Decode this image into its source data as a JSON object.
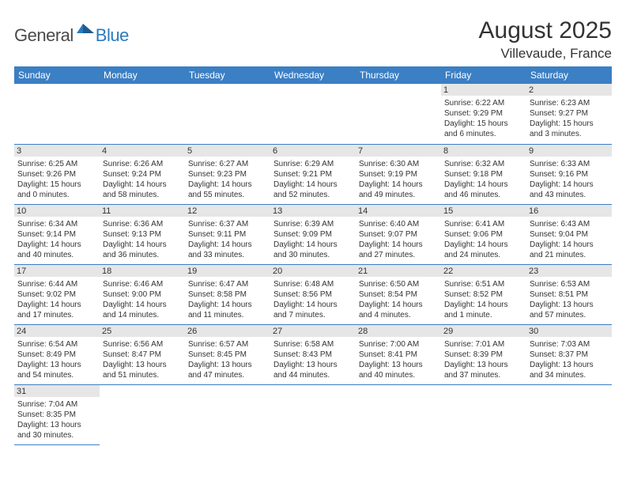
{
  "logo": {
    "part1": "General",
    "part2": "Blue"
  },
  "title": "August 2025",
  "location": "Villevaude, France",
  "colors": {
    "header_bg": "#3b7fc4",
    "header_fg": "#ffffff",
    "daynum_bg": "#e6e6e6",
    "rule": "#3b7fc4",
    "text": "#333333",
    "logo_gray": "#4a4a4a",
    "logo_blue": "#2a7abf"
  },
  "weekdays": [
    "Sunday",
    "Monday",
    "Tuesday",
    "Wednesday",
    "Thursday",
    "Friday",
    "Saturday"
  ],
  "startOffset": 5,
  "days": [
    {
      "n": 1,
      "sunrise": "6:22 AM",
      "sunset": "9:29 PM",
      "dlh": 15,
      "dlm": 6
    },
    {
      "n": 2,
      "sunrise": "6:23 AM",
      "sunset": "9:27 PM",
      "dlh": 15,
      "dlm": 3
    },
    {
      "n": 3,
      "sunrise": "6:25 AM",
      "sunset": "9:26 PM",
      "dlh": 15,
      "dlm": 0
    },
    {
      "n": 4,
      "sunrise": "6:26 AM",
      "sunset": "9:24 PM",
      "dlh": 14,
      "dlm": 58
    },
    {
      "n": 5,
      "sunrise": "6:27 AM",
      "sunset": "9:23 PM",
      "dlh": 14,
      "dlm": 55
    },
    {
      "n": 6,
      "sunrise": "6:29 AM",
      "sunset": "9:21 PM",
      "dlh": 14,
      "dlm": 52
    },
    {
      "n": 7,
      "sunrise": "6:30 AM",
      "sunset": "9:19 PM",
      "dlh": 14,
      "dlm": 49
    },
    {
      "n": 8,
      "sunrise": "6:32 AM",
      "sunset": "9:18 PM",
      "dlh": 14,
      "dlm": 46
    },
    {
      "n": 9,
      "sunrise": "6:33 AM",
      "sunset": "9:16 PM",
      "dlh": 14,
      "dlm": 43
    },
    {
      "n": 10,
      "sunrise": "6:34 AM",
      "sunset": "9:14 PM",
      "dlh": 14,
      "dlm": 40
    },
    {
      "n": 11,
      "sunrise": "6:36 AM",
      "sunset": "9:13 PM",
      "dlh": 14,
      "dlm": 36
    },
    {
      "n": 12,
      "sunrise": "6:37 AM",
      "sunset": "9:11 PM",
      "dlh": 14,
      "dlm": 33
    },
    {
      "n": 13,
      "sunrise": "6:39 AM",
      "sunset": "9:09 PM",
      "dlh": 14,
      "dlm": 30
    },
    {
      "n": 14,
      "sunrise": "6:40 AM",
      "sunset": "9:07 PM",
      "dlh": 14,
      "dlm": 27
    },
    {
      "n": 15,
      "sunrise": "6:41 AM",
      "sunset": "9:06 PM",
      "dlh": 14,
      "dlm": 24
    },
    {
      "n": 16,
      "sunrise": "6:43 AM",
      "sunset": "9:04 PM",
      "dlh": 14,
      "dlm": 21
    },
    {
      "n": 17,
      "sunrise": "6:44 AM",
      "sunset": "9:02 PM",
      "dlh": 14,
      "dlm": 17
    },
    {
      "n": 18,
      "sunrise": "6:46 AM",
      "sunset": "9:00 PM",
      "dlh": 14,
      "dlm": 14
    },
    {
      "n": 19,
      "sunrise": "6:47 AM",
      "sunset": "8:58 PM",
      "dlh": 14,
      "dlm": 11
    },
    {
      "n": 20,
      "sunrise": "6:48 AM",
      "sunset": "8:56 PM",
      "dlh": 14,
      "dlm": 7
    },
    {
      "n": 21,
      "sunrise": "6:50 AM",
      "sunset": "8:54 PM",
      "dlh": 14,
      "dlm": 4
    },
    {
      "n": 22,
      "sunrise": "6:51 AM",
      "sunset": "8:52 PM",
      "dlh": 14,
      "dlm": 1
    },
    {
      "n": 23,
      "sunrise": "6:53 AM",
      "sunset": "8:51 PM",
      "dlh": 13,
      "dlm": 57
    },
    {
      "n": 24,
      "sunrise": "6:54 AM",
      "sunset": "8:49 PM",
      "dlh": 13,
      "dlm": 54
    },
    {
      "n": 25,
      "sunrise": "6:56 AM",
      "sunset": "8:47 PM",
      "dlh": 13,
      "dlm": 51
    },
    {
      "n": 26,
      "sunrise": "6:57 AM",
      "sunset": "8:45 PM",
      "dlh": 13,
      "dlm": 47
    },
    {
      "n": 27,
      "sunrise": "6:58 AM",
      "sunset": "8:43 PM",
      "dlh": 13,
      "dlm": 44
    },
    {
      "n": 28,
      "sunrise": "7:00 AM",
      "sunset": "8:41 PM",
      "dlh": 13,
      "dlm": 40
    },
    {
      "n": 29,
      "sunrise": "7:01 AM",
      "sunset": "8:39 PM",
      "dlh": 13,
      "dlm": 37
    },
    {
      "n": 30,
      "sunrise": "7:03 AM",
      "sunset": "8:37 PM",
      "dlh": 13,
      "dlm": 34
    },
    {
      "n": 31,
      "sunrise": "7:04 AM",
      "sunset": "8:35 PM",
      "dlh": 13,
      "dlm": 30
    }
  ],
  "labels": {
    "sunrise": "Sunrise:",
    "sunset": "Sunset:",
    "daylight": "Daylight:",
    "hours": "hours",
    "and": "and",
    "minute": "minute",
    "minutes": "minutes"
  }
}
